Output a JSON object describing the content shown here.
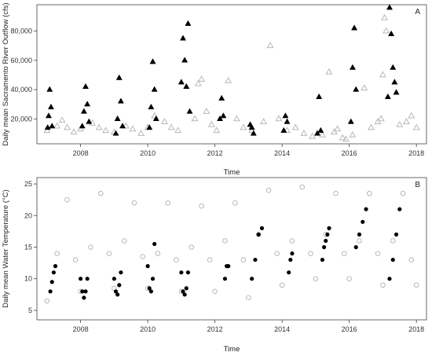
{
  "chart_data": [
    {
      "type": "scatter",
      "panel_label": "A",
      "xlabel": "Time",
      "ylabel": "Daily mean Sacramento River Outflow (cfs)",
      "xlim": [
        2006.7,
        2018.3
      ],
      "ylim": [
        3000,
        98000
      ],
      "xticks": [
        2008,
        2010,
        2012,
        2014,
        2016,
        2018
      ],
      "yticks": [
        20000,
        40000,
        60000,
        80000
      ],
      "ytick_labels": [
        "20,000",
        "40,000",
        "60,000",
        "80,000"
      ],
      "grid": false,
      "marker": "triangle",
      "colors": {
        "highlight": "#000000",
        "other": "#b8b8b8"
      },
      "series": [
        {
          "color_key": "other",
          "x": [
            2007.0,
            2007.3,
            2007.45,
            2007.6,
            2007.8,
            2008.0,
            2008.35,
            2008.55,
            2008.75,
            2009.0,
            2009.35,
            2009.55,
            2009.8,
            2010.0,
            2010.2,
            2010.5,
            2010.7,
            2010.9,
            2011.4,
            2011.5,
            2011.6,
            2011.75,
            2011.9,
            2012.05,
            2012.4,
            2012.65,
            2012.85,
            2013.1,
            2013.45,
            2013.65,
            2013.9,
            2014.15,
            2014.4,
            2014.65,
            2014.9,
            2015.2,
            2015.4,
            2015.55,
            2015.65,
            2015.8,
            2015.9,
            2016.1,
            2016.45,
            2016.65,
            2016.85,
            2016.95,
            2017.0,
            2017.05,
            2017.1,
            2017.5,
            2017.7,
            2017.85,
            2018.0
          ],
          "y": [
            12000,
            15000,
            19000,
            14000,
            11000,
            13000,
            17000,
            14000,
            12000,
            11000,
            15000,
            13000,
            10000,
            14000,
            22000,
            18000,
            14000,
            12000,
            20000,
            44000,
            47000,
            25000,
            16000,
            12000,
            46000,
            20000,
            14000,
            12000,
            18000,
            70000,
            20000,
            12000,
            14000,
            10000,
            8000,
            9000,
            52000,
            11000,
            13000,
            7000,
            6000,
            9000,
            41000,
            14000,
            18000,
            20000,
            50000,
            89000,
            80000,
            16000,
            18000,
            22000,
            14000
          ]
        },
        {
          "color_key": "highlight",
          "x": [
            2007.02,
            2007.05,
            2007.08,
            2007.12,
            2007.15,
            2008.05,
            2008.1,
            2008.15,
            2008.2,
            2008.25,
            2009.05,
            2009.1,
            2009.15,
            2009.2,
            2009.25,
            2010.05,
            2010.1,
            2010.15,
            2010.2,
            2010.25,
            2011.0,
            2011.05,
            2011.1,
            2011.15,
            2011.2,
            2011.25,
            2012.15,
            2012.2,
            2012.25,
            2013.05,
            2013.1,
            2013.15,
            2014.05,
            2014.1,
            2014.15,
            2015.05,
            2015.1,
            2015.15,
            2016.05,
            2016.1,
            2016.15,
            2016.2,
            2017.15,
            2017.2,
            2017.25,
            2017.3,
            2017.35,
            2017.4
          ],
          "y": [
            14000,
            22000,
            40000,
            28000,
            15000,
            15000,
            25000,
            42000,
            30000,
            18000,
            10000,
            20000,
            48000,
            32000,
            15000,
            14000,
            28000,
            59000,
            40000,
            20000,
            45000,
            75000,
            60000,
            42000,
            85000,
            25000,
            20000,
            34000,
            22000,
            16000,
            14000,
            10000,
            12000,
            22000,
            18000,
            10000,
            35000,
            12000,
            18000,
            55000,
            82000,
            40000,
            35000,
            96000,
            78000,
            55000,
            45000,
            38000
          ]
        }
      ]
    },
    {
      "type": "scatter",
      "panel_label": "B",
      "xlabel": "Time",
      "ylabel": "Daily mean Water Temperature (°C)",
      "xlim": [
        2006.7,
        2018.3
      ],
      "ylim": [
        3.5,
        26
      ],
      "xticks": [
        2008,
        2010,
        2012,
        2014,
        2016,
        2018
      ],
      "yticks": [
        5,
        10,
        15,
        20,
        25
      ],
      "ytick_labels": [
        "5",
        "10",
        "15",
        "20",
        "25"
      ],
      "grid": false,
      "marker": "circle",
      "colors": {
        "highlight": "#000000",
        "other": "#b8b8b8"
      },
      "series": [
        {
          "color_key": "other",
          "x": [
            2007.0,
            2007.3,
            2007.6,
            2007.85,
            2008.0,
            2008.3,
            2008.6,
            2008.85,
            2009.0,
            2009.3,
            2009.6,
            2009.85,
            2010.0,
            2010.3,
            2010.6,
            2010.85,
            2011.0,
            2011.3,
            2011.6,
            2011.85,
            2012.0,
            2012.3,
            2012.6,
            2012.85,
            2013.0,
            2013.3,
            2013.6,
            2013.85,
            2014.0,
            2014.3,
            2014.6,
            2014.85,
            2015.0,
            2015.3,
            2015.6,
            2015.85,
            2016.0,
            2016.3,
            2016.6,
            2016.85,
            2017.0,
            2017.3,
            2017.6,
            2017.85,
            2018.0
          ],
          "y": [
            6.5,
            14,
            22.5,
            13,
            8,
            15,
            23.5,
            14,
            8.5,
            16,
            22,
            13.5,
            8.5,
            14,
            22,
            13,
            8,
            15,
            21.5,
            13,
            8,
            16,
            22,
            13,
            7,
            17,
            24,
            14,
            9,
            16,
            24.5,
            14,
            10,
            17,
            23.5,
            14,
            10,
            16,
            23.5,
            14,
            9,
            16,
            23.5,
            13,
            9
          ]
        },
        {
          "color_key": "highlight",
          "x": [
            2007.1,
            2007.15,
            2007.2,
            2007.25,
            2008.0,
            2008.05,
            2008.1,
            2008.15,
            2008.2,
            2009.0,
            2009.05,
            2009.1,
            2009.15,
            2009.2,
            2010.0,
            2010.05,
            2010.1,
            2010.15,
            2010.2,
            2011.0,
            2011.05,
            2011.1,
            2011.15,
            2011.2,
            2012.3,
            2012.35,
            2012.4,
            2013.1,
            2013.2,
            2013.3,
            2013.4,
            2014.2,
            2014.25,
            2014.3,
            2015.2,
            2015.25,
            2015.3,
            2015.35,
            2015.4,
            2016.2,
            2016.3,
            2016.4,
            2016.5,
            2017.2,
            2017.3,
            2017.4,
            2017.5
          ],
          "y": [
            8,
            9.5,
            11,
            12,
            10,
            8,
            7,
            8,
            10,
            10,
            8,
            7.5,
            9,
            11,
            12,
            8.5,
            8,
            10,
            15.5,
            11,
            8,
            7.5,
            8.5,
            11,
            10,
            12,
            12,
            10,
            13,
            17,
            18,
            11,
            13,
            14,
            13,
            15,
            16,
            17,
            18,
            15,
            17,
            19,
            21,
            10,
            13,
            17,
            21
          ]
        }
      ]
    }
  ]
}
